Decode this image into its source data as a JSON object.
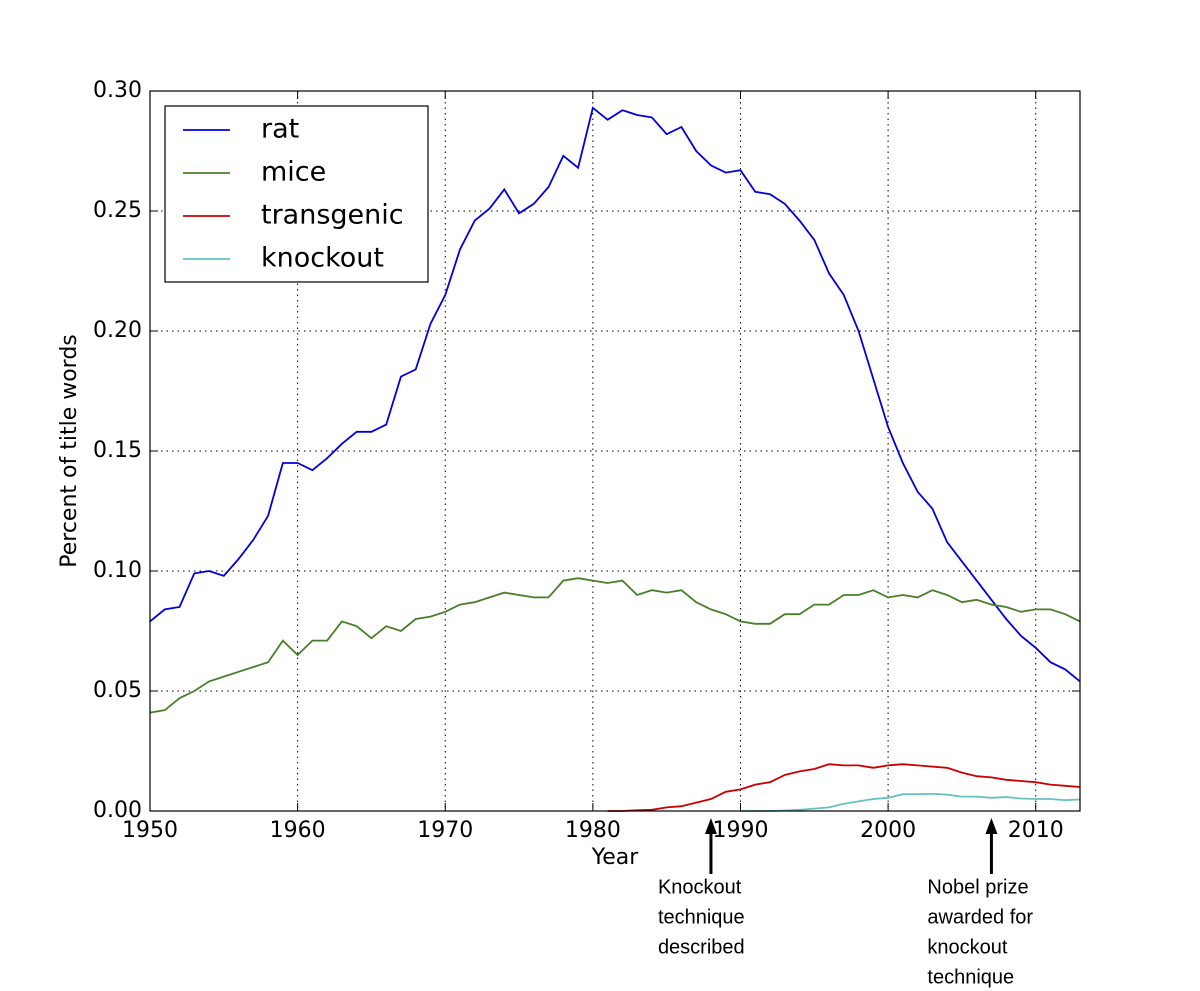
{
  "chart_data": {
    "type": "line",
    "xlabel": "Year",
    "ylabel": "Percent of title words",
    "x": [
      1950,
      1951,
      1952,
      1953,
      1954,
      1955,
      1956,
      1957,
      1958,
      1959,
      1960,
      1961,
      1962,
      1963,
      1964,
      1965,
      1966,
      1967,
      1968,
      1969,
      1970,
      1971,
      1972,
      1973,
      1974,
      1975,
      1976,
      1977,
      1978,
      1979,
      1980,
      1981,
      1982,
      1983,
      1984,
      1985,
      1986,
      1987,
      1988,
      1989,
      1990,
      1991,
      1992,
      1993,
      1994,
      1995,
      1996,
      1997,
      1998,
      1999,
      2000,
      2001,
      2002,
      2003,
      2004,
      2005,
      2006,
      2007,
      2008,
      2009,
      2010,
      2011,
      2012,
      2013
    ],
    "series": [
      {
        "name": "rat",
        "color": "#0000dd",
        "values": [
          0.079,
          0.084,
          0.085,
          0.099,
          0.1,
          0.098,
          0.105,
          0.113,
          0.123,
          0.145,
          0.145,
          0.142,
          0.147,
          0.153,
          0.158,
          0.158,
          0.161,
          0.181,
          0.184,
          0.203,
          0.215,
          0.234,
          0.246,
          0.251,
          0.259,
          0.249,
          0.253,
          0.26,
          0.273,
          0.268,
          0.293,
          0.288,
          0.292,
          0.29,
          0.289,
          0.282,
          0.285,
          0.275,
          0.269,
          0.266,
          0.267,
          0.258,
          0.257,
          0.253,
          0.246,
          0.238,
          0.224,
          0.215,
          0.2,
          0.18,
          0.16,
          0.145,
          0.133,
          0.126,
          0.112,
          0.104,
          0.096,
          0.088,
          0.08,
          0.073,
          0.068,
          0.062,
          0.059,
          0.054
        ]
      },
      {
        "name": "mice",
        "color": "#4a7f2a",
        "values": [
          0.041,
          0.042,
          0.047,
          0.05,
          0.054,
          0.056,
          0.058,
          0.06,
          0.062,
          0.071,
          0.065,
          0.071,
          0.071,
          0.079,
          0.077,
          0.072,
          0.077,
          0.075,
          0.08,
          0.081,
          0.083,
          0.086,
          0.087,
          0.089,
          0.091,
          0.09,
          0.089,
          0.089,
          0.096,
          0.097,
          0.096,
          0.095,
          0.096,
          0.09,
          0.092,
          0.091,
          0.092,
          0.087,
          0.084,
          0.082,
          0.079,
          0.078,
          0.078,
          0.082,
          0.082,
          0.086,
          0.086,
          0.09,
          0.09,
          0.092,
          0.089,
          0.09,
          0.089,
          0.092,
          0.09,
          0.087,
          0.088,
          0.086,
          0.085,
          0.083,
          0.084,
          0.084,
          0.082,
          0.079
        ]
      },
      {
        "name": "transgenic",
        "color": "#cc0000",
        "values": [
          null,
          null,
          null,
          null,
          null,
          null,
          null,
          null,
          null,
          null,
          null,
          null,
          null,
          null,
          null,
          null,
          null,
          null,
          null,
          null,
          null,
          null,
          null,
          null,
          null,
          null,
          null,
          null,
          null,
          null,
          null,
          0,
          0,
          0.0003,
          0.0005,
          0.0015,
          0.002,
          0.0035,
          0.005,
          0.008,
          0.009,
          0.011,
          0.012,
          0.015,
          0.0165,
          0.0175,
          0.0195,
          0.019,
          0.019,
          0.018,
          0.019,
          0.0195,
          0.019,
          0.0185,
          0.018,
          0.016,
          0.0145,
          0.014,
          0.013,
          0.0125,
          0.012,
          0.011,
          0.0105,
          0.01
        ]
      },
      {
        "name": "knockout",
        "color": "#66c2c2",
        "values": [
          null,
          null,
          null,
          null,
          null,
          null,
          null,
          null,
          null,
          null,
          null,
          null,
          null,
          null,
          null,
          null,
          null,
          null,
          null,
          null,
          null,
          null,
          null,
          null,
          null,
          null,
          null,
          null,
          null,
          null,
          null,
          null,
          null,
          null,
          null,
          null,
          null,
          null,
          null,
          null,
          0,
          0,
          0,
          0.0002,
          0.0005,
          0.001,
          0.0015,
          0.003,
          0.004,
          0.005,
          0.0055,
          0.007,
          0.007,
          0.0072,
          0.0068,
          0.006,
          0.006,
          0.0055,
          0.0058,
          0.0052,
          0.005,
          0.005,
          0.0045,
          0.0048
        ]
      }
    ],
    "xlim": [
      1950,
      2013
    ],
    "xticks": [
      1950,
      1960,
      1970,
      1980,
      1990,
      2000,
      2010
    ],
    "ylim": [
      0,
      0.3
    ],
    "yticks": [
      {
        "value": 0,
        "label": "0.00"
      },
      {
        "value": 0.05,
        "label": "0.05"
      },
      {
        "value": 0.1,
        "label": "0.10"
      },
      {
        "value": 0.15,
        "label": "0.15"
      },
      {
        "value": 0.2,
        "label": "0.20"
      },
      {
        "value": 0.25,
        "label": "0.25"
      },
      {
        "value": 0.3,
        "label": "0.30"
      }
    ],
    "grid": true,
    "legend": "upper left",
    "annotations": [
      {
        "x": 1988,
        "lines": [
          "Knockout",
          "technique",
          "described"
        ]
      },
      {
        "x": 2007,
        "lines": [
          "Nobel prize",
          "awarded for",
          "knockout",
          "technique"
        ]
      }
    ]
  }
}
